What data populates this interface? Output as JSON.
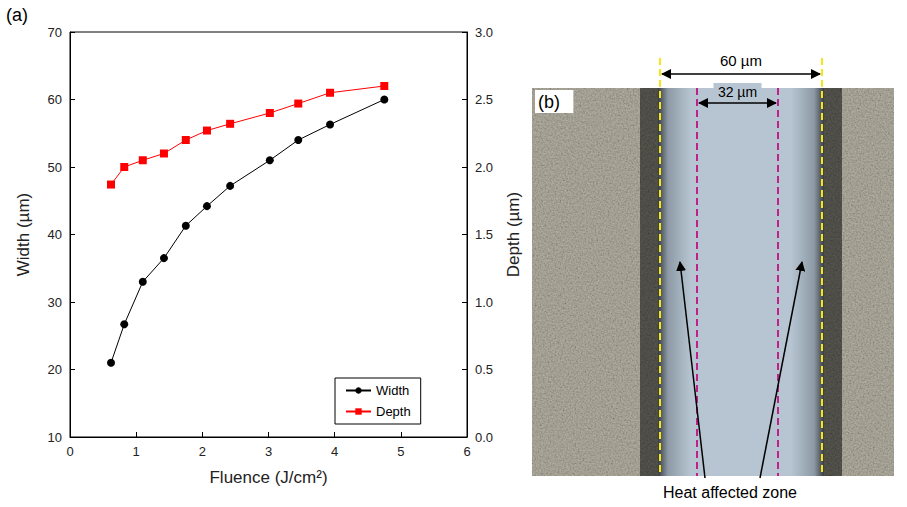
{
  "chart_data": {
    "type": "line",
    "label": "(a)",
    "x_label": "Fluence (J/cm²)",
    "y_label": "Width (µm)",
    "y2_label": "Depth (µm)",
    "xlim": [
      0,
      6
    ],
    "xticks": [
      0,
      1,
      2,
      3,
      4,
      5,
      6
    ],
    "ylim": [
      10,
      70
    ],
    "yticks": [
      10,
      20,
      30,
      40,
      50,
      60,
      70
    ],
    "y2lim": [
      0,
      3
    ],
    "y2ticks": [
      {
        "value": 0,
        "label": "0.0"
      },
      {
        "value": 0.5,
        "label": "0.5"
      },
      {
        "value": 1,
        "label": "1.0"
      },
      {
        "value": 1.5,
        "label": "1.5"
      },
      {
        "value": 2,
        "label": "2.0"
      },
      {
        "value": 2.5,
        "label": "2.5"
      },
      {
        "value": 3,
        "label": "3.0"
      }
    ],
    "x": [
      0.62,
      0.82,
      1.1,
      1.42,
      1.75,
      2.07,
      2.42,
      3.02,
      3.45,
      3.93,
      4.75
    ],
    "series": [
      {
        "name": "Width",
        "color": "#000000",
        "marker": "circle",
        "values": [
          21,
          26.7,
          33,
          36.5,
          41.3,
          44.2,
          47.2,
          51,
          54,
          56.3,
          60
        ]
      },
      {
        "name": "Depth",
        "color": "#ff0000",
        "marker": "square",
        "axis": "y2",
        "values": [
          1.87,
          2.0,
          2.05,
          2.1,
          2.2,
          2.27,
          2.32,
          2.4,
          2.47,
          2.55,
          2.6
        ]
      }
    ],
    "legend": "lower right",
    "grid": false
  },
  "panel_b": {
    "label": "(b)",
    "outer_width": "60 µm",
    "inner_width": "32 µm",
    "annotation": "Heat affected zone"
  }
}
